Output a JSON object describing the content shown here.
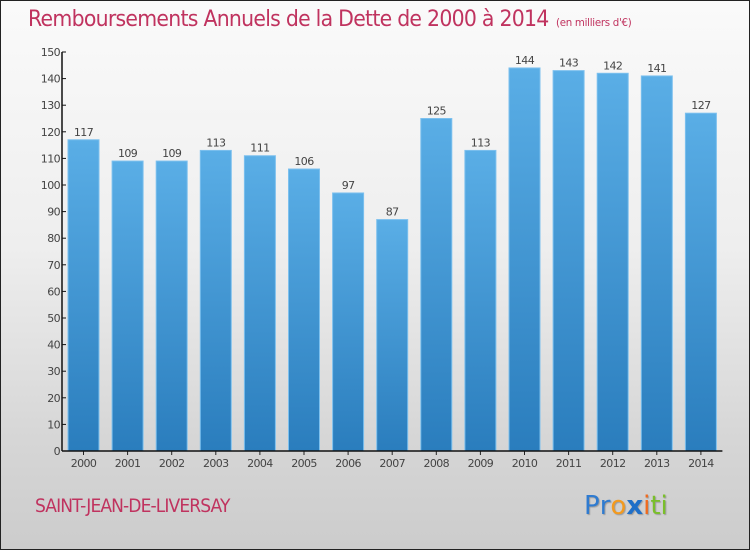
{
  "chart_data": {
    "type": "bar",
    "title": "Remboursements Annuels de la Dette de 2000 à 2014",
    "subtitle": "(en milliers d'€)",
    "xlabel": "",
    "ylabel": "",
    "categories": [
      "2000",
      "2001",
      "2002",
      "2003",
      "2004",
      "2005",
      "2006",
      "2007",
      "2008",
      "2009",
      "2010",
      "2011",
      "2012",
      "2013",
      "2014"
    ],
    "values": [
      117,
      109,
      109,
      113,
      111,
      106,
      97,
      87,
      125,
      113,
      144,
      143,
      142,
      141,
      127
    ],
    "ylim": [
      0,
      150
    ],
    "yticks": [
      0,
      10,
      20,
      30,
      40,
      50,
      60,
      70,
      80,
      90,
      100,
      110,
      120,
      130,
      140,
      150
    ],
    "grid": false,
    "legend": "none",
    "bar_color": "#4aa0dc"
  },
  "footer": {
    "city": "SAINT-JEAN-DE-LIVERSAY",
    "logo_letters": [
      {
        "char": "P",
        "color": "#2f7bd0"
      },
      {
        "char": "r",
        "color": "#2f7bd0"
      },
      {
        "char": "o",
        "color": "#f39a1e"
      },
      {
        "char": "x",
        "color": "#1f6fc8"
      },
      {
        "char": "i",
        "color": "#f06a1e"
      },
      {
        "char": "t",
        "color": "#7abf2a"
      },
      {
        "char": "i",
        "color": "#7abf2a"
      }
    ]
  },
  "colors": {
    "title": "#c0335f",
    "bar": "#4aa0dc"
  }
}
